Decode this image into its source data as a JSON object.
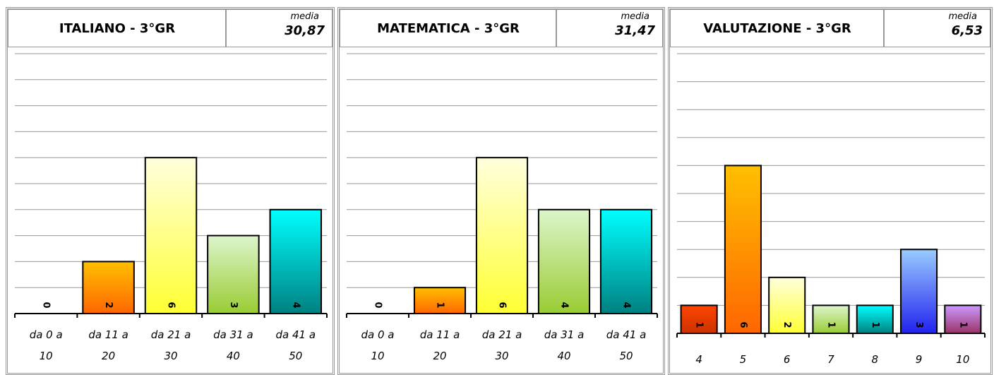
{
  "chart_data": [
    {
      "type": "bar",
      "title": "ITALIANO - 3°GR",
      "stat_label": "media",
      "stat_value": "30,87",
      "categories": [
        "da 0 a 10",
        "da 11 a 20",
        "da 21 a 30",
        "da 31 a 40",
        "da 41 a 50"
      ],
      "values": [
        0,
        2,
        6,
        3,
        4
      ],
      "colors": [
        [
          "#ff9900",
          "#ff5500"
        ],
        [
          "#ffc000",
          "#ff6600"
        ],
        [
          "#ffffdd",
          "#ffff33"
        ],
        [
          "#ddf5cc",
          "#99cc33"
        ],
        [
          "#00ffff",
          "#008080"
        ]
      ],
      "ylim": [
        0,
        10
      ],
      "yticks": [
        0,
        1,
        2,
        3,
        4,
        5,
        6,
        7,
        8,
        9,
        10
      ],
      "grid": true
    },
    {
      "type": "bar",
      "title": "MATEMATICA - 3°GR",
      "stat_label": "media",
      "stat_value": "31,47",
      "categories": [
        "da 0 a 10",
        "da 11 a 20",
        "da 21 a 30",
        "da 31 a 40",
        "da 41 a 50"
      ],
      "values": [
        0,
        1,
        6,
        4,
        4
      ],
      "colors": [
        [
          "#ff9900",
          "#ff5500"
        ],
        [
          "#ffc000",
          "#ff6600"
        ],
        [
          "#ffffdd",
          "#ffff33"
        ],
        [
          "#ddf5cc",
          "#99cc33"
        ],
        [
          "#00ffff",
          "#008080"
        ]
      ],
      "ylim": [
        0,
        10
      ],
      "yticks": [
        0,
        1,
        2,
        3,
        4,
        5,
        6,
        7,
        8,
        9,
        10
      ],
      "grid": true
    },
    {
      "type": "bar",
      "title": "VALUTAZIONE - 3°GR",
      "stat_label": "media",
      "stat_value": "6,53",
      "categories": [
        "4",
        "5",
        "6",
        "7",
        "8",
        "9",
        "10"
      ],
      "values": [
        1,
        6,
        2,
        1,
        1,
        3,
        1
      ],
      "colors": [
        [
          "#ff4400",
          "#cc3300"
        ],
        [
          "#ffc000",
          "#ff6600"
        ],
        [
          "#ffffdd",
          "#ffff33"
        ],
        [
          "#ddf5cc",
          "#99cc33"
        ],
        [
          "#00ffff",
          "#008080"
        ],
        [
          "#99ccff",
          "#2222ee"
        ],
        [
          "#cc99ff",
          "#993366"
        ]
      ],
      "ylim": [
        0,
        10
      ],
      "yticks": [
        0,
        1,
        2,
        3,
        4,
        5,
        6,
        7,
        8,
        9,
        10
      ],
      "grid": true
    }
  ]
}
